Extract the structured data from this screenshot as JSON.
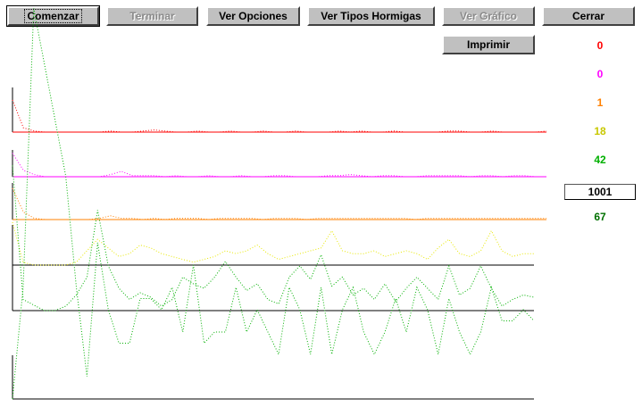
{
  "toolbar": {
    "comenzar": "Comenzar",
    "terminar": "Terminar",
    "ver_opciones": "Ver Opciones",
    "ver_tipos": "Ver Tipos Hormigas",
    "ver_grafico": "Ver Gráfico",
    "cerrar": "Cerrar",
    "imprimir": "Imprimir"
  },
  "counters": [
    {
      "value": "0",
      "color": "#ff0000"
    },
    {
      "value": "0",
      "color": "#ff00ff"
    },
    {
      "value": "1",
      "color": "#ff8000"
    },
    {
      "value": "18",
      "color": "#c8c800"
    },
    {
      "value": "42",
      "color": "#00b000"
    },
    {
      "value": "1001",
      "color": "#000000"
    },
    {
      "value": "67",
      "color": "#007000"
    }
  ],
  "chart_data": {
    "type": "line",
    "series": [
      {
        "color": "#ff0000",
        "values": [
          30,
          4,
          1,
          0,
          0,
          0,
          0,
          0,
          0,
          1,
          0,
          0,
          1,
          2,
          1,
          0,
          0,
          1,
          0,
          0,
          1,
          0,
          0,
          1,
          0,
          0,
          1,
          0,
          0,
          0,
          1,
          0,
          1,
          0,
          0,
          1,
          0,
          0,
          0,
          0,
          1,
          1,
          0,
          0,
          1,
          0,
          0,
          0,
          0,
          1
        ]
      },
      {
        "color": "#ff00ff",
        "values": [
          22,
          6,
          2,
          0,
          0,
          0,
          0,
          0,
          0,
          2,
          5,
          1,
          1,
          1,
          0,
          1,
          0,
          0,
          1,
          0,
          0,
          1,
          0,
          0,
          1,
          1,
          0,
          0,
          0,
          1,
          1,
          2,
          1,
          0,
          1,
          1,
          0,
          0,
          1,
          1,
          1,
          1,
          0,
          1,
          1,
          0,
          1,
          1,
          0,
          0
        ]
      },
      {
        "color": "#ff8000",
        "values": [
          25,
          6,
          1,
          0,
          0,
          0,
          0,
          0,
          1,
          3,
          1,
          1,
          0,
          1,
          0,
          1,
          1,
          1,
          0,
          1,
          1,
          1,
          1,
          0,
          1,
          1,
          1,
          0,
          1,
          1,
          1,
          1,
          1,
          1,
          1,
          1,
          1,
          0,
          1,
          1,
          1,
          1,
          1,
          1,
          1,
          1,
          1,
          1,
          1,
          1
        ]
      },
      {
        "color": "#e8e800",
        "values": [
          30,
          2,
          0,
          0,
          0,
          0,
          2,
          10,
          18,
          12,
          6,
          8,
          14,
          12,
          8,
          6,
          4,
          2,
          4,
          6,
          10,
          8,
          10,
          14,
          8,
          4,
          6,
          8,
          10,
          12,
          24,
          10,
          8,
          8,
          10,
          6,
          8,
          10,
          8,
          4,
          12,
          18,
          8,
          6,
          10,
          24,
          10,
          6,
          8,
          8
        ]
      },
      {
        "color": "#00b000",
        "values": [
          130,
          10,
          5,
          0,
          0,
          4,
          14,
          30,
          90,
          40,
          20,
          10,
          16,
          12,
          4,
          10,
          30,
          24,
          20,
          30,
          44,
          30,
          18,
          24,
          10,
          6,
          30,
          40,
          28,
          50,
          22,
          30,
          14,
          20,
          10,
          24,
          8,
          20,
          30,
          20,
          10,
          40,
          14,
          20,
          40,
          20,
          4,
          10,
          14,
          12
        ]
      },
      {
        "color": "#00b000",
        "values": [
          0,
          100,
          350,
          300,
          250,
          200,
          100,
          20,
          140,
          80,
          50,
          50,
          90,
          90,
          80,
          100,
          60,
          120,
          50,
          60,
          60,
          100,
          60,
          80,
          60,
          40,
          100,
          80,
          40,
          100,
          40,
          80,
          100,
          60,
          40,
          60,
          90,
          60,
          100,
          80,
          40,
          90,
          60,
          40,
          60,
          100,
          70,
          70,
          80,
          70
        ]
      }
    ]
  }
}
